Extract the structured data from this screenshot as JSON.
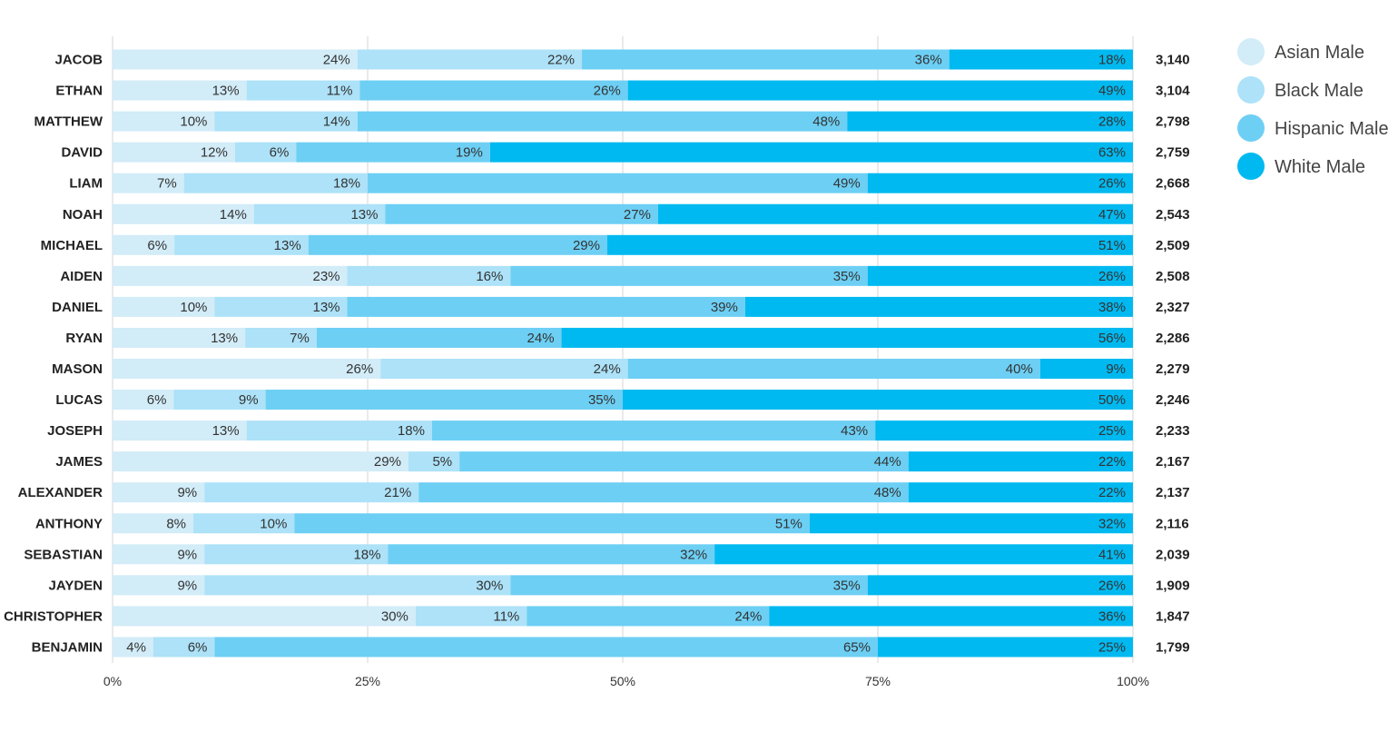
{
  "chart_data": {
    "type": "bar",
    "orientation": "horizontal",
    "stacked": "100%",
    "title": "",
    "xlabel": "",
    "ylabel": "",
    "xlim": [
      0,
      100
    ],
    "x_ticks": [
      "0%",
      "25%",
      "50%",
      "75%",
      "100%"
    ],
    "grid": true,
    "legend_position": "right",
    "categories": [
      "JACOB",
      "ETHAN",
      "MATTHEW",
      "DAVID",
      "LIAM",
      "NOAH",
      "MICHAEL",
      "AIDEN",
      "DANIEL",
      "RYAN",
      "MASON",
      "LUCAS",
      "JOSEPH",
      "JAMES",
      "ALEXANDER",
      "ANTHONY",
      "SEBASTIAN",
      "JAYDEN",
      "CHRISTOPHER",
      "BENJAMIN"
    ],
    "totals": [
      "3,140",
      "3,104",
      "2,798",
      "2,759",
      "2,668",
      "2,543",
      "2,509",
      "2,508",
      "2,327",
      "2,286",
      "2,279",
      "2,246",
      "2,233",
      "2,167",
      "2,137",
      "2,116",
      "2,039",
      "1,909",
      "1,847",
      "1,799"
    ],
    "series": [
      {
        "name": "Asian Male",
        "color": "#d2ecf8",
        "values": [
          24,
          13,
          10,
          12,
          7,
          14,
          6,
          23,
          10,
          13,
          26,
          6,
          13,
          29,
          9,
          8,
          9,
          9,
          30,
          4
        ]
      },
      {
        "name": "Black Male",
        "color": "#ade2f8",
        "values": [
          22,
          11,
          14,
          6,
          18,
          13,
          13,
          16,
          13,
          7,
          24,
          9,
          18,
          5,
          21,
          10,
          18,
          30,
          11,
          6
        ]
      },
      {
        "name": "Hispanic Male",
        "color": "#6dcff4",
        "values": [
          36,
          26,
          48,
          19,
          49,
          27,
          29,
          35,
          39,
          24,
          40,
          35,
          43,
          44,
          48,
          51,
          32,
          35,
          24,
          65
        ]
      },
      {
        "name": "White Male",
        "color": "#00b9f0",
        "values": [
          18,
          49,
          28,
          63,
          26,
          47,
          51,
          26,
          38,
          56,
          9,
          50,
          25,
          22,
          22,
          32,
          41,
          26,
          36,
          25
        ]
      }
    ]
  }
}
